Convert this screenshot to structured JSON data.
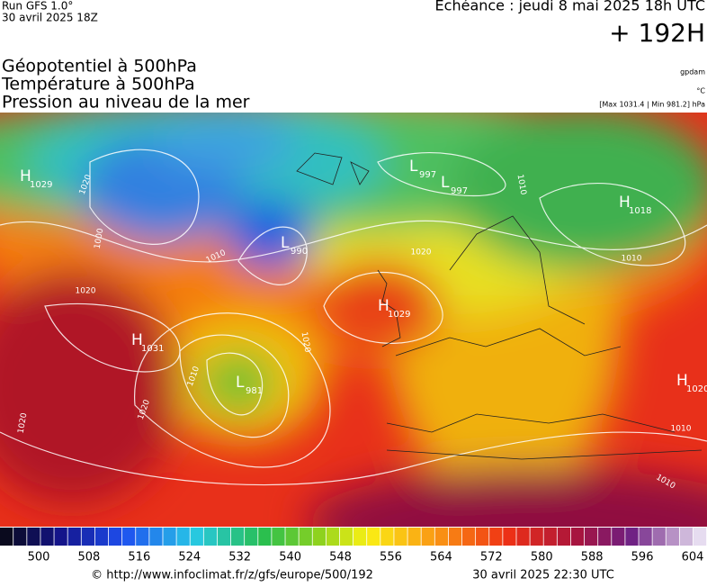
{
  "header": {
    "run": "Run GFS 1.0°",
    "run_date": "30 avril 2025 18Z",
    "forecast": "Echéance : jeudi 8 mai 2025 18h UTC",
    "lead": "+ 192H"
  },
  "titles": [
    "Géopotentiel à 500hPa",
    "Température à 500hPa",
    "Pression au niveau de la mer"
  ],
  "units": {
    "geopotential": "gpdam",
    "temperature": "°C",
    "pressure": "[Max 1031.4 | Min 981.2] hPa"
  },
  "centers": [
    {
      "kind": "H",
      "value": "1029"
    },
    {
      "kind": "L",
      "value": "990"
    },
    {
      "kind": "L",
      "value": "997"
    },
    {
      "kind": "L",
      "value": "997"
    },
    {
      "kind": "H",
      "value": "1018"
    },
    {
      "kind": "H",
      "value": "1029"
    },
    {
      "kind": "H",
      "value": "1031"
    },
    {
      "kind": "L",
      "value": "981"
    },
    {
      "kind": "H",
      "value": "1020"
    }
  ],
  "isobar_labels": [
    "1020",
    "1010",
    "1000",
    "1020",
    "1020",
    "1010",
    "1010",
    "1020",
    "1010",
    "1020",
    "1010",
    "1010",
    "1020"
  ],
  "colorbar": {
    "ticks": [
      500,
      508,
      516,
      524,
      532,
      540,
      548,
      556,
      564,
      572,
      580,
      588,
      596,
      604
    ]
  },
  "footer": {
    "source": "© http://www.infoclimat.fr/z/gfs/europe/500/192",
    "issued": "30 avril 2025 22:30 UTC"
  }
}
